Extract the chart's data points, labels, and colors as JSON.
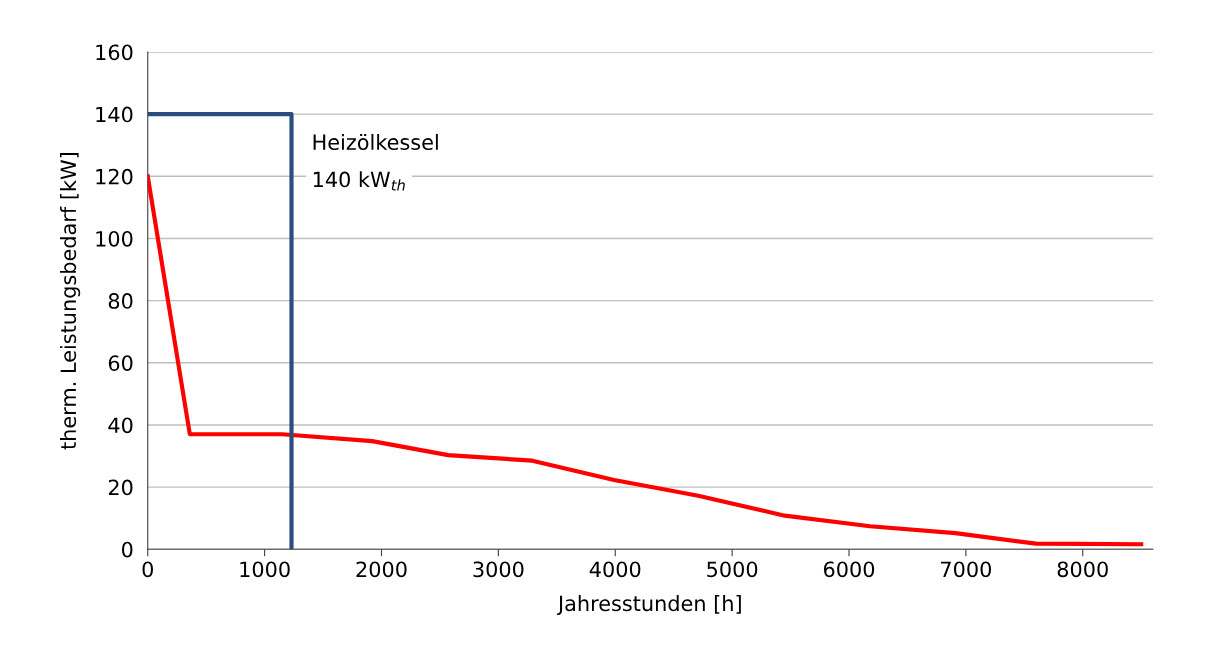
{
  "chart_data": {
    "type": "line",
    "xlabel": "Jahresstunden [h]",
    "ylabel": "therm. Leistungsbedarf [kW]",
    "xlim": [
      0,
      8600
    ],
    "xticks": [
      0,
      1000,
      2000,
      3000,
      4000,
      5000,
      6000,
      7000,
      8000
    ],
    "ylim": [
      0,
      160
    ],
    "yticks": [
      0,
      20,
      40,
      60,
      80,
      100,
      120,
      140,
      160
    ],
    "grid": "y",
    "series": [
      {
        "color": "#ff0000",
        "x": [
          0,
          360,
          1150,
          1920,
          2570,
          3290,
          3990,
          4710,
          5450,
          6180,
          6910,
          7600,
          8500
        ],
        "values": [
          120,
          37,
          37,
          34.8,
          30.3,
          28.5,
          22.3,
          17.2,
          10.8,
          7.4,
          5.2,
          1.8,
          1.6
        ]
      },
      {
        "color": "#2b4e7e",
        "x": [
          0,
          1230,
          1230
        ],
        "values": [
          140,
          140,
          0
        ]
      }
    ],
    "annotations": [
      "Heizölkessel",
      "140 kW$_{th}$"
    ]
  }
}
